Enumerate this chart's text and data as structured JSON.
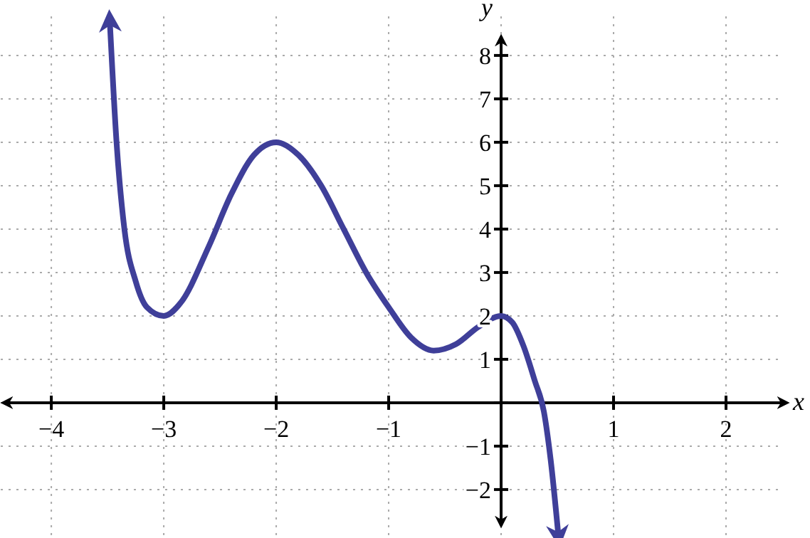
{
  "chart_data": {
    "type": "line",
    "xlabel": "x",
    "ylabel": "y",
    "xlim": [
      -4.45,
      2.5
    ],
    "ylim": [
      -3.1,
      8.9
    ],
    "xticks": [
      -4,
      -3,
      -2,
      -1,
      {
        "value": 0,
        "label": null
      },
      1,
      2
    ],
    "yticks": [
      -2,
      -1,
      {
        "value": 0,
        "label": null
      },
      1,
      2,
      3,
      4,
      5,
      6,
      7,
      8
    ],
    "grid": true,
    "marker": "none",
    "line_style": "solid",
    "series": [
      {
        "color": "#3f3f99",
        "x": [
          -3.48,
          -3.42,
          -3.35,
          -3.25,
          -3.15,
          -3,
          -2.85,
          -2.6,
          -2.4,
          -2.2,
          -2,
          -1.8,
          -1.6,
          -1.4,
          -1.2,
          -1,
          -0.8,
          -0.6,
          -0.4,
          -0.2,
          0,
          0.1,
          0.2,
          0.3,
          0.38,
          0.44,
          0.51
        ],
        "values": [
          8.8,
          6,
          4,
          2.8,
          2.2,
          2,
          2.3,
          3.6,
          4.8,
          5.7,
          6,
          5.7,
          5,
          4,
          3,
          2.2,
          1.5,
          1.2,
          1.35,
          1.75,
          2,
          1.85,
          1.3,
          0.5,
          -0.2,
          -1.3,
          -3.08
        ]
      }
    ]
  }
}
